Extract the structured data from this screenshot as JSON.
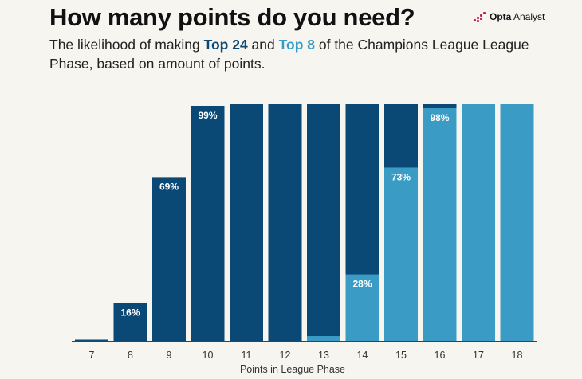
{
  "header": {
    "title": "How many points do you need?",
    "subtitle_prefix": "The likelihood of making ",
    "subtitle_top24": "Top 24",
    "subtitle_and": " and ",
    "subtitle_top8": "Top 8",
    "subtitle_suffix": " of the Champions League League Phase, based on amount of points."
  },
  "brand": {
    "name_bold": "Opta",
    "name_rest": " Analyst",
    "accent_color": "#c2185b"
  },
  "colors": {
    "top24": "#0a4876",
    "top8": "#3a9cc5",
    "background": "#f7f5f0"
  },
  "chart_data": {
    "type": "bar",
    "xlabel": "Points in League Phase",
    "ylim": [
      0,
      100
    ],
    "categories": [
      "7",
      "8",
      "9",
      "10",
      "11",
      "12",
      "13",
      "14",
      "15",
      "16",
      "17",
      "18"
    ],
    "series": [
      {
        "name": "Top 24",
        "values": [
          0.5,
          16,
          69,
          99,
          100,
          100,
          100,
          100,
          100,
          100,
          100,
          100
        ]
      },
      {
        "name": "Top 8",
        "values": [
          0,
          0,
          0,
          0,
          0,
          0,
          2,
          28,
          73,
          98,
          100,
          100
        ]
      }
    ],
    "data_labels": [
      {
        "category": "8",
        "series": "Top 24",
        "text": "16%"
      },
      {
        "category": "9",
        "series": "Top 24",
        "text": "69%"
      },
      {
        "category": "10",
        "series": "Top 24",
        "text": "99%"
      },
      {
        "category": "14",
        "series": "Top 8",
        "text": "28%"
      },
      {
        "category": "15",
        "series": "Top 8",
        "text": "73%"
      },
      {
        "category": "16",
        "series": "Top 8",
        "text": "98%"
      }
    ]
  }
}
